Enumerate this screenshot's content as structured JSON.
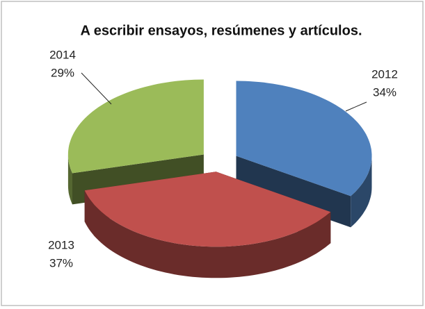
{
  "chart_data": {
    "type": "pie3d",
    "title": "A escribir ensayos, resúmenes y artículos.",
    "categories": [
      "2012",
      "2013",
      "2014"
    ],
    "values": [
      34,
      37,
      29
    ],
    "value_labels": [
      "34%",
      "37%",
      "29%"
    ],
    "colors": [
      "#4f81bd",
      "#c0504d",
      "#9bbb59"
    ]
  }
}
